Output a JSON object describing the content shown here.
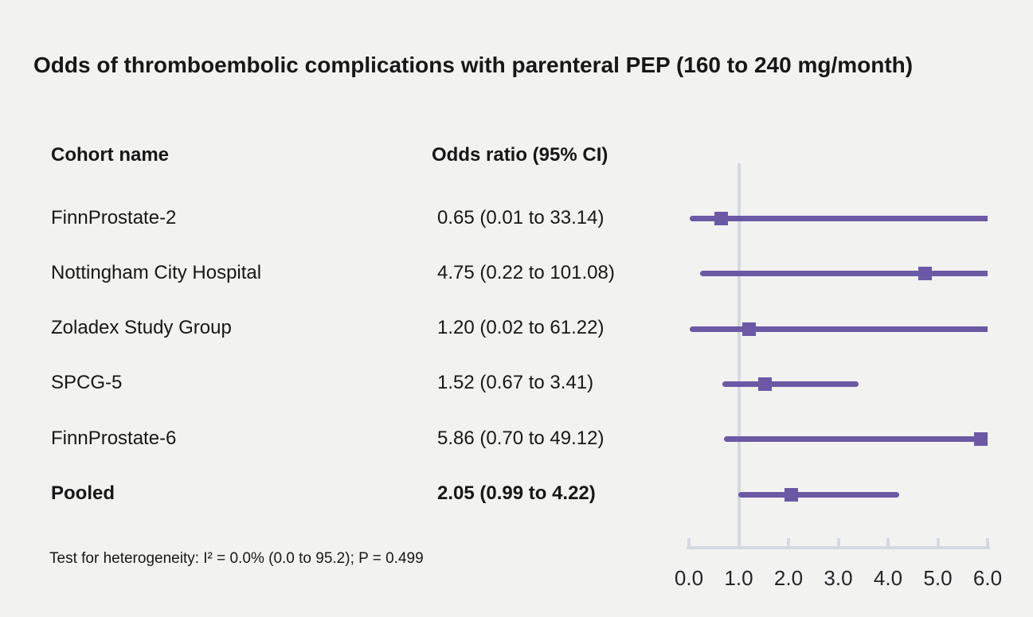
{
  "title": "Odds of thromboembolic complications with parenteral PEP (160 to 240 mg/month)",
  "columns": {
    "cohort": "Cohort name",
    "odds": "Odds ratio (95% CI)"
  },
  "footer": "Test for heterogeneity: I² = 0.0% (0.0 to 95.2); P = 0.499",
  "colors": {
    "marker": "#6b59a5",
    "axis": "#d4d9e1",
    "background": "#f2f2f1",
    "text": "#171717"
  },
  "chart_data": {
    "type": "forest",
    "title": "Odds of thromboembolic complications with parenteral PEP (160 to 240 mg/month)",
    "xlabel": "",
    "xlim": [
      0.0,
      6.0
    ],
    "x_ticks": [
      "0.0",
      "1.0",
      "2.0",
      "3.0",
      "4.0",
      "5.0",
      "6.0"
    ],
    "x_tick_values": [
      0,
      1,
      2,
      3,
      4,
      5,
      6
    ],
    "reference_line": 1.0,
    "grid": false,
    "rows": [
      {
        "cohort": "FinnProstate-2",
        "label": "0.65 (0.01 to 33.14)",
        "or": 0.65,
        "ci_low": 0.01,
        "ci_high": 33.14,
        "bold": false
      },
      {
        "cohort": "Nottingham City Hospital",
        "label": "4.75 (0.22 to 101.08)",
        "or": 4.75,
        "ci_low": 0.22,
        "ci_high": 101.08,
        "bold": false
      },
      {
        "cohort": "Zoladex Study Group",
        "label": "1.20 (0.02 to 61.22)",
        "or": 1.2,
        "ci_low": 0.02,
        "ci_high": 61.22,
        "bold": false
      },
      {
        "cohort": "SPCG-5",
        "label": "1.52 (0.67 to 3.41)",
        "or": 1.52,
        "ci_low": 0.67,
        "ci_high": 3.41,
        "bold": false
      },
      {
        "cohort": "FinnProstate-6",
        "label": "5.86 (0.70 to 49.12)",
        "or": 5.86,
        "ci_low": 0.7,
        "ci_high": 49.12,
        "bold": false
      },
      {
        "cohort": "Pooled",
        "label": "2.05 (0.99 to 4.22)",
        "or": 2.05,
        "ci_low": 0.99,
        "ci_high": 4.22,
        "bold": true
      }
    ],
    "heterogeneity_note": "Test for heterogeneity: I² = 0.0% (0.0 to 95.2); P = 0.499"
  }
}
